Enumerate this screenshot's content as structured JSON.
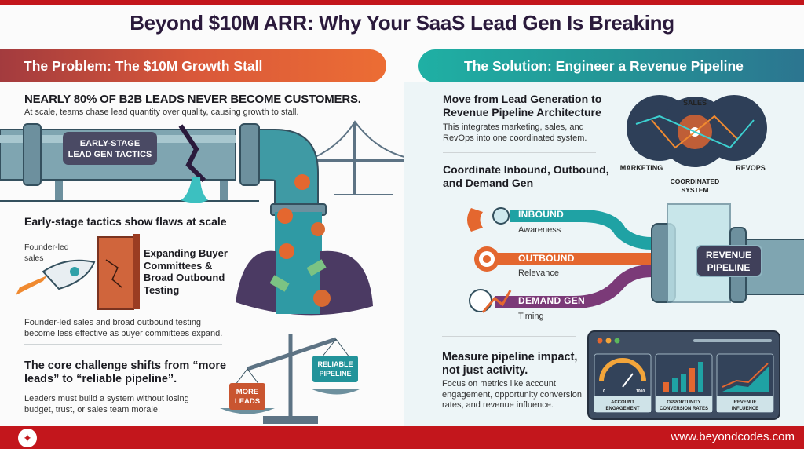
{
  "title": "Beyond $10M ARR: Why Your SaaS Lead Gen Is Breaking",
  "colors": {
    "brand_red": "#c3161c",
    "problem_orange": "#e8683a",
    "solution_teal": "#1fa89e",
    "text_dark": "#2b1a3c"
  },
  "problem": {
    "banner": "The Problem: The $10M Growth Stall",
    "stat_heading": "NEARLY 80% OF B2B LEADS NEVER BECOME CUSTOMERS.",
    "stat_text": "At scale, teams chase lead quantity over quality, causing growth to stall.",
    "pipe_label_line1": "EARLY-STAGE",
    "pipe_label_line2": "LEAD GEN TACTICS",
    "flaws_heading": "Early-stage tactics show flaws at scale",
    "rocket_label": "Founder-led sales",
    "wall_label": "Expanding Buyer Committees & Broad Outbound Testing",
    "flaws_text": "Founder-led sales and broad outbound testing become less effective as buyer committees expand.",
    "challenge_heading": "The core challenge shifts from “more leads” to “reliable pipeline”.",
    "challenge_text": "Leaders must build a system without losing budget, trust, or sales team morale.",
    "scale_left_line1": "MORE",
    "scale_left_line2": "LEADS",
    "scale_right_line1": "RELIABLE",
    "scale_right_line2": "PIPELINE"
  },
  "solution": {
    "banner": "The Solution: Engineer a Revenue Pipeline",
    "arch_heading": "Move from Lead Generation to Revenue Pipeline Architecture",
    "arch_text": "This integrates marketing, sales, and RevOps into one coordinated system.",
    "network": {
      "top": "SALES",
      "left": "MARKETING",
      "right": "REVOPS",
      "center_line1": "COORDINATED",
      "center_line2": "SYSTEM"
    },
    "coord_heading": "Coordinate Inbound, Outbound, and Demand Gen",
    "channels": [
      {
        "name": "INBOUND",
        "desc": "Awareness",
        "color": "#1fa2a4",
        "icon": "magnet-magnifier-icon"
      },
      {
        "name": "OUTBOUND",
        "desc": "Relevance",
        "color": "#e4672f",
        "icon": "target-icon"
      },
      {
        "name": "DEMAND GEN",
        "desc": "Timing",
        "color": "#7b3a78",
        "icon": "clock-chart-icon"
      }
    ],
    "pipeline_line1": "REVENUE",
    "pipeline_line2": "PIPELINE",
    "measure_heading": "Measure pipeline impact, not just activity.",
    "measure_text": "Focus on metrics like account engagement, opportunity conversion rates, and revenue influence.",
    "dashboard": {
      "gauge_min": "0",
      "gauge_max": "1000",
      "panels": [
        {
          "line1": "ACCOUNT",
          "line2": "ENGAGEMENT"
        },
        {
          "line1": "OPPORTUNITY",
          "line2": "CONVERSION RATES"
        },
        {
          "line1": "REVENUE",
          "line2": "INFLUENCE"
        }
      ]
    }
  },
  "footer": {
    "url": "www.beyondcodes.com",
    "logo_icon": "beyondcodes-logo-icon"
  }
}
